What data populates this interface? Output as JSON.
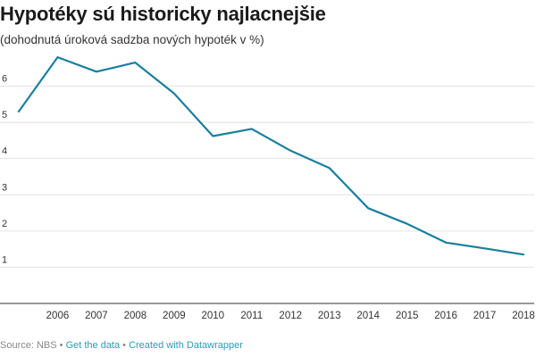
{
  "header": {
    "title": "Hypotéky sú historicky najlacnejšie",
    "subtitle": "(dohodnutá úroková sadzba nových hypoték v %)"
  },
  "footer": {
    "source": "Source: NBS",
    "sep1": " • ",
    "get_data": "Get the data",
    "sep2": " • ",
    "created_with": "Created with Datawrapper"
  },
  "colors": {
    "line": "#1a7f9e",
    "grid": "#e3e3e3",
    "axis": "#333333",
    "link": "#2a9bb8"
  },
  "chart_data": {
    "type": "line",
    "title": "Hypotéky sú historicky najlacnejšie",
    "subtitle": "(dohodnutá úroková sadzba nových hypoték v %)",
    "x": [
      2005,
      2006,
      2007,
      2008,
      2009,
      2010,
      2011,
      2012,
      2013,
      2014,
      2015,
      2016,
      2017,
      2018
    ],
    "x_ticks": [
      2006,
      2007,
      2008,
      2009,
      2010,
      2011,
      2012,
      2013,
      2014,
      2015,
      2016,
      2017,
      2018
    ],
    "xlim": [
      2005,
      2018
    ],
    "series": [
      {
        "values": [
          5.3,
          6.8,
          6.4,
          6.65,
          5.8,
          4.62,
          4.82,
          4.22,
          3.74,
          2.63,
          2.2,
          1.68,
          1.52,
          1.35
        ]
      }
    ],
    "y_ticks": [
      1,
      2,
      3,
      4,
      5,
      6
    ],
    "ylim": [
      0,
      6.9
    ],
    "grid": true
  }
}
